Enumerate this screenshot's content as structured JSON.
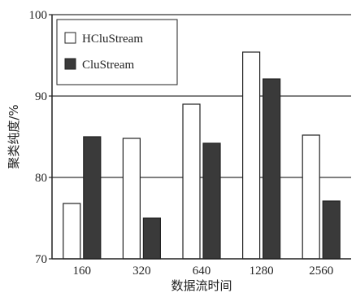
{
  "chart_data": {
    "type": "bar",
    "categories": [
      "160",
      "320",
      "640",
      "1280",
      "2560"
    ],
    "series": [
      {
        "name": "HCluStream",
        "values": [
          76.8,
          84.8,
          89.0,
          95.4,
          85.2
        ],
        "color": "#ffffff"
      },
      {
        "name": "CluStream",
        "values": [
          85.0,
          75.0,
          84.2,
          92.1,
          77.1
        ],
        "color": "#3a3a3a"
      }
    ],
    "xlabel": "数据流时间",
    "ylabel": "聚类纯度/%",
    "ylim": [
      70,
      100
    ],
    "yticks": [
      "70",
      "80",
      "90",
      "100"
    ],
    "grid": "horizontal",
    "legend_position": "top-left"
  }
}
